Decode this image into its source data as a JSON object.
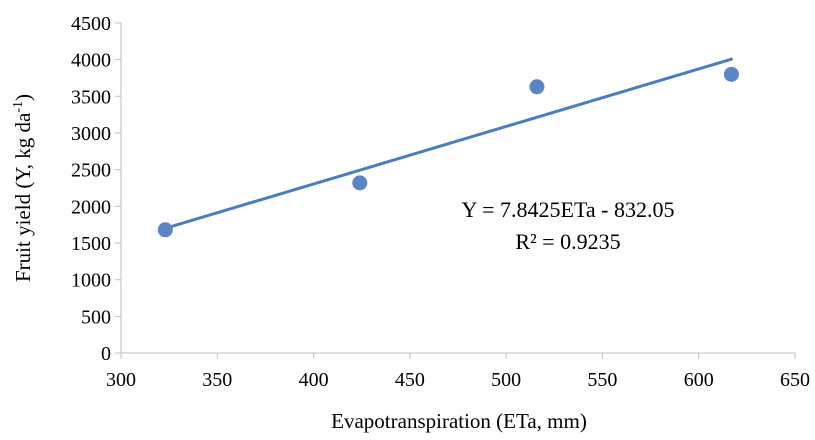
{
  "chart_data": {
    "type": "scatter",
    "xlabel": "Evapotranspiration (ETa, mm)",
    "ylabel_main": "Fruit yield (Y, kg da",
    "ylabel_sup": "-1",
    "ylabel_tail": ")",
    "xlim": [
      300,
      650
    ],
    "ylim": [
      0,
      4500
    ],
    "xticks": [
      "300",
      "350",
      "400",
      "450",
      "500",
      "550",
      "600",
      "650"
    ],
    "yticks": [
      "0",
      "500",
      "1000",
      "1500",
      "2000",
      "2500",
      "3000",
      "3500",
      "4000",
      "4500"
    ],
    "grid": false,
    "points": [
      {
        "x": 323,
        "y": 1680
      },
      {
        "x": 424,
        "y": 2320
      },
      {
        "x": 516,
        "y": 3630
      },
      {
        "x": 617,
        "y": 3800
      }
    ],
    "trendline": {
      "slope": 7.8425,
      "intercept": -832.05,
      "x_range": [
        323,
        617
      ],
      "equation": "Y = 7.8425ETa - 832.05",
      "r_squared": "R² = 0.9235"
    },
    "colors": {
      "marker": "#5b85c4",
      "trendline": "#4a7ebb",
      "axis": "#bfbfbf"
    }
  }
}
